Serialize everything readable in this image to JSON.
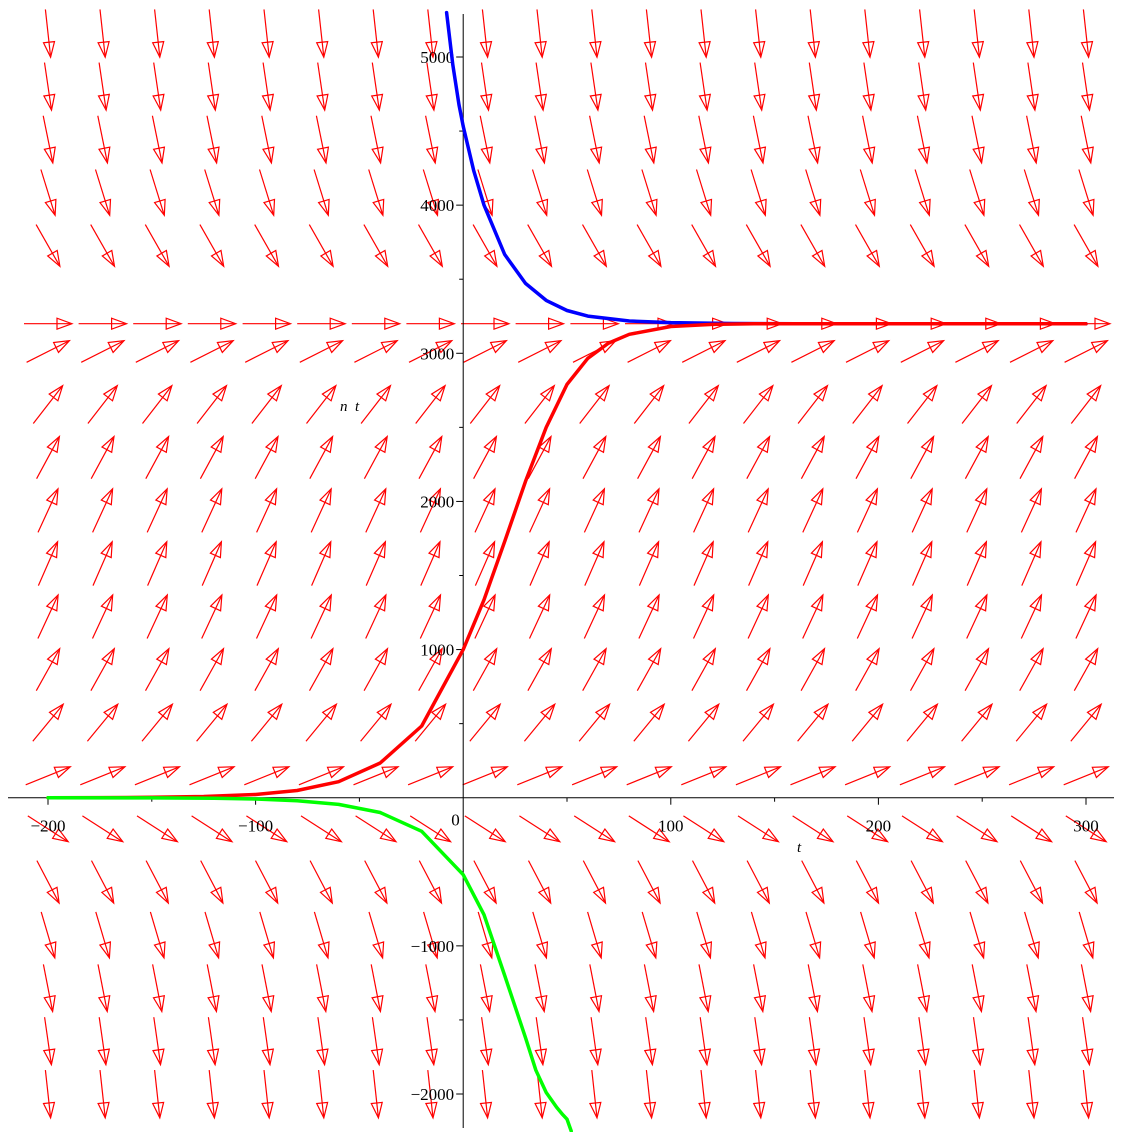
{
  "chart_data": {
    "type": "line",
    "subtype": "direction-field",
    "title": "",
    "xlabel": "t",
    "ylabel": "n  t",
    "xlim": [
      -210,
      310
    ],
    "ylim": [
      -2250,
      5300
    ],
    "grid": false,
    "origin_label": "0",
    "x_ticks": [
      {
        "value": -200,
        "label": "−200"
      },
      {
        "value": -100,
        "label": "−100"
      },
      {
        "value": 100,
        "label": "100"
      },
      {
        "value": 200,
        "label": "200"
      },
      {
        "value": 300,
        "label": "300"
      }
    ],
    "x_minor_ticks": [
      -150,
      -50,
      50,
      150,
      250
    ],
    "y_ticks": [
      {
        "value": -2000,
        "label": "−2000"
      },
      {
        "value": -1000,
        "label": "−1000"
      },
      {
        "value": 1000,
        "label": "1000"
      },
      {
        "value": 2000,
        "label": "2000"
      },
      {
        "value": 3000,
        "label": "3000"
      },
      {
        "value": 4000,
        "label": "4000"
      },
      {
        "value": 5000,
        "label": "5000"
      }
    ],
    "y_minor_ticks": [
      -1500,
      -500,
      500,
      1500,
      2500,
      3500,
      4500
    ],
    "field": {
      "model": "logistic",
      "rate": 0.04,
      "capacity": 3200,
      "x_grid": [
        -200,
        -173.7,
        -147.4,
        -121.1,
        -94.7,
        -68.4,
        -42.1,
        -15.8,
        10.5,
        36.8,
        63.2,
        89.5,
        115.8,
        142.1,
        168.4,
        194.7,
        221.1,
        247.4,
        273.7,
        300
      ],
      "y_grid": [
        -2000,
        -1642,
        -1284,
        -926,
        -568,
        -210,
        148,
        506,
        864,
        1222,
        1580,
        1938,
        2296,
        2654,
        3012,
        3200,
        3728,
        4086,
        4444,
        4802,
        5160
      ],
      "color": "#ff0000"
    },
    "series": [
      {
        "color": "#0000ff",
        "x": [
          -8,
          -5,
          -2,
          0,
          5,
          10,
          20,
          30,
          40,
          50,
          60,
          80,
          100,
          130,
          160,
          200,
          250,
          300
        ],
        "y": [
          5300,
          4948,
          4677,
          4533,
          4236,
          4000,
          3667,
          3472,
          3357,
          3289,
          3251,
          3218,
          3207,
          3201,
          3200,
          3200,
          3200,
          3200
        ]
      },
      {
        "color": "#ff0000",
        "x": [
          -200,
          -175,
          -150,
          -125,
          -100,
          -80,
          -60,
          -40,
          -20,
          0,
          10,
          20,
          30,
          40,
          50,
          60,
          70,
          80,
          100,
          120,
          140,
          160,
          200,
          250,
          300
        ],
        "y": [
          0.4,
          1,
          3,
          8,
          22,
          49,
          108,
          234,
          484,
          1000,
          1336,
          1730,
          2135,
          2500,
          2790,
          2966,
          3069,
          3128,
          3181,
          3195,
          3199,
          3200,
          3200,
          3200,
          3200
        ]
      },
      {
        "color": "#00ff00",
        "x": [
          -200,
          -150,
          -120,
          -100,
          -80,
          -60,
          -40,
          -20,
          0,
          10,
          20,
          30,
          35,
          40,
          45,
          48,
          50,
          52
        ],
        "y": [
          -0.2,
          -1,
          -4,
          -9,
          -20,
          -45,
          -100,
          -227,
          -520,
          -790,
          -1200,
          -1620,
          -1840,
          -1990,
          -2090,
          -2140,
          -2170,
          -2250
        ]
      }
    ]
  }
}
